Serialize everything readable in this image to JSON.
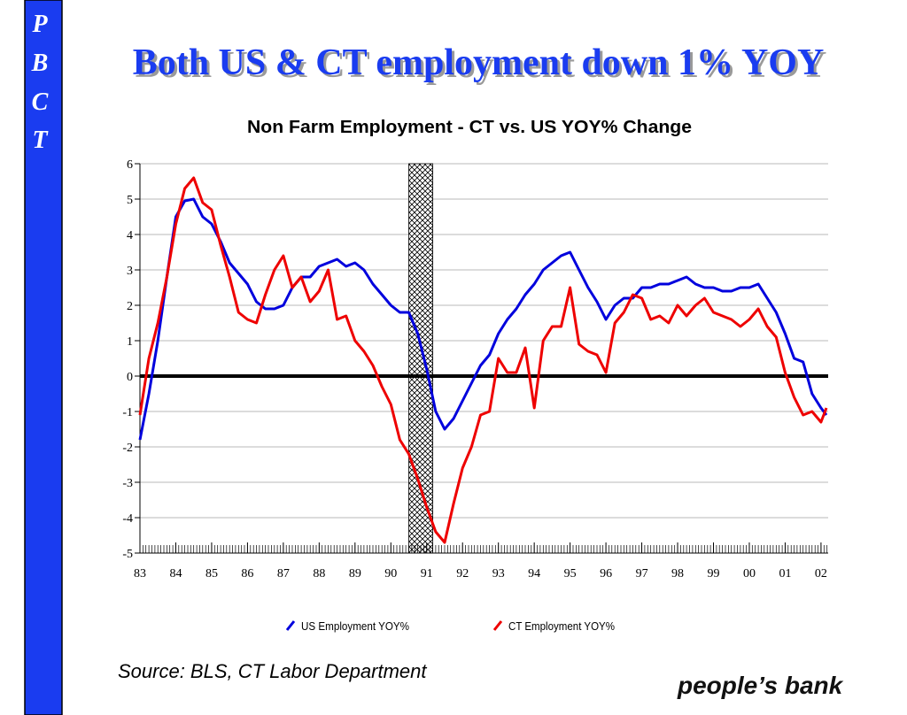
{
  "sidebar": [
    "P",
    "B",
    "C",
    "T"
  ],
  "title": "Both US & CT employment down 1% YOY",
  "source": "Source: BLS, CT Labor Department",
  "logo": "people’s bank",
  "chart_data": {
    "type": "line",
    "title": "Non Farm Employment - CT vs. US  YOY% Change",
    "x": [
      1983,
      1983.25,
      1983.5,
      1983.75,
      1984,
      1984.25,
      1984.5,
      1984.75,
      1985,
      1985.25,
      1985.5,
      1985.75,
      1986,
      1986.25,
      1986.5,
      1986.75,
      1987,
      1987.25,
      1987.5,
      1987.75,
      1988,
      1988.25,
      1988.5,
      1988.75,
      1989,
      1989.25,
      1989.5,
      1989.75,
      1990,
      1990.25,
      1990.5,
      1990.75,
      1991,
      1991.25,
      1991.5,
      1991.75,
      1992,
      1992.25,
      1992.5,
      1992.75,
      1993,
      1993.25,
      1993.5,
      1993.75,
      1994,
      1994.25,
      1994.5,
      1994.75,
      1995,
      1995.25,
      1995.5,
      1995.75,
      1996,
      1996.25,
      1996.5,
      1996.75,
      1997,
      1997.25,
      1997.5,
      1997.75,
      1998,
      1998.25,
      1998.5,
      1998.75,
      1999,
      1999.25,
      1999.5,
      1999.75,
      2000,
      2000.25,
      2000.5,
      2000.75,
      2001,
      2001.25,
      2001.5,
      2001.75,
      2002,
      2002.15
    ],
    "series": [
      {
        "name": "US Employment YOY%",
        "color": "#0000dd",
        "values": [
          -1.8,
          -0.5,
          1.0,
          2.8,
          4.5,
          4.95,
          5.0,
          4.5,
          4.3,
          3.8,
          3.2,
          2.9,
          2.6,
          2.1,
          1.9,
          1.9,
          2.0,
          2.5,
          2.8,
          2.8,
          3.1,
          3.2,
          3.3,
          3.1,
          3.2,
          3.0,
          2.6,
          2.3,
          2.0,
          1.8,
          1.8,
          1.2,
          0.2,
          -1.0,
          -1.5,
          -1.2,
          -0.7,
          -0.2,
          0.3,
          0.6,
          1.2,
          1.6,
          1.9,
          2.3,
          2.6,
          3.0,
          3.2,
          3.4,
          3.5,
          3.0,
          2.5,
          2.1,
          1.6,
          2.0,
          2.2,
          2.2,
          2.5,
          2.5,
          2.6,
          2.6,
          2.7,
          2.8,
          2.6,
          2.5,
          2.5,
          2.4,
          2.4,
          2.5,
          2.5,
          2.6,
          2.2,
          1.8,
          1.2,
          0.5,
          0.4,
          -0.5,
          -0.9,
          -1.1
        ]
      },
      {
        "name": "CT Employment YOY%",
        "color": "#ee0000",
        "values": [
          -1.1,
          0.5,
          1.5,
          2.8,
          4.3,
          5.3,
          5.6,
          4.9,
          4.7,
          3.7,
          2.8,
          1.8,
          1.6,
          1.5,
          2.3,
          3.0,
          3.4,
          2.5,
          2.8,
          2.1,
          2.4,
          3.0,
          1.6,
          1.7,
          1.0,
          0.7,
          0.3,
          -0.3,
          -0.8,
          -1.8,
          -2.2,
          -2.9,
          -3.7,
          -4.4,
          -4.7,
          -3.6,
          -2.6,
          -2.0,
          -1.1,
          -1.0,
          0.5,
          0.1,
          0.1,
          0.8,
          -0.9,
          1.0,
          1.4,
          1.4,
          2.5,
          0.9,
          0.7,
          0.6,
          0.1,
          1.5,
          1.8,
          2.3,
          2.2,
          1.6,
          1.7,
          1.5,
          2.0,
          1.7,
          2.0,
          2.2,
          1.8,
          1.7,
          1.6,
          1.4,
          1.6,
          1.9,
          1.4,
          1.1,
          0.1,
          -0.6,
          -1.1,
          -1.0,
          -1.3,
          -0.9
        ]
      }
    ],
    "shaded_ranges": [
      [
        1990.5,
        1991.17
      ]
    ],
    "xlim": [
      1983,
      2002.2
    ],
    "xticks": [
      {
        "value": 1983,
        "label": "83"
      },
      {
        "value": 1984,
        "label": "84"
      },
      {
        "value": 1985,
        "label": "85"
      },
      {
        "value": 1986,
        "label": "86"
      },
      {
        "value": 1987,
        "label": "87"
      },
      {
        "value": 1988,
        "label": "88"
      },
      {
        "value": 1989,
        "label": "89"
      },
      {
        "value": 1990,
        "label": "90"
      },
      {
        "value": 1991,
        "label": "91"
      },
      {
        "value": 1992,
        "label": "92"
      },
      {
        "value": 1993,
        "label": "93"
      },
      {
        "value": 1994,
        "label": "94"
      },
      {
        "value": 1995,
        "label": "95"
      },
      {
        "value": 1996,
        "label": "96"
      },
      {
        "value": 1997,
        "label": "97"
      },
      {
        "value": 1998,
        "label": "98"
      },
      {
        "value": 1999,
        "label": "99"
      },
      {
        "value": 2000,
        "label": "00"
      },
      {
        "value": 2001,
        "label": "01"
      },
      {
        "value": 2002,
        "label": "02"
      }
    ],
    "ylim": [
      -5,
      6
    ],
    "yticks": [
      -5,
      -4,
      -3,
      -2,
      -1,
      0,
      1,
      2,
      3,
      4,
      5,
      6
    ],
    "grid": true,
    "zero_line": true
  }
}
